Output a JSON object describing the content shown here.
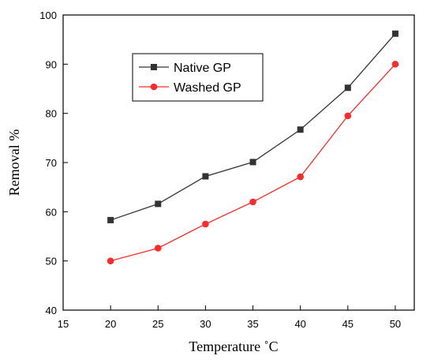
{
  "chart_data": {
    "type": "line",
    "xlabel": "Temperature ˚C",
    "ylabel": "Removal %",
    "xlim": [
      15,
      52
    ],
    "ylim": [
      40,
      100
    ],
    "xticks": [
      15,
      20,
      25,
      30,
      35,
      40,
      45,
      50
    ],
    "yticks": [
      40,
      50,
      60,
      70,
      80,
      90,
      100
    ],
    "grid": false,
    "legend_position": "top-left",
    "x": [
      20,
      25,
      30,
      35,
      40,
      45,
      50
    ],
    "series": [
      {
        "name": "Native GP",
        "color": "#333333",
        "marker": "square",
        "values": [
          58.3,
          61.6,
          67.2,
          70.1,
          76.7,
          85.2,
          96.2
        ]
      },
      {
        "name": "Washed GP",
        "color": "#ff2a2a",
        "marker": "circle",
        "values": [
          50.0,
          52.6,
          57.5,
          62.0,
          67.1,
          79.5,
          90.0
        ]
      }
    ]
  }
}
